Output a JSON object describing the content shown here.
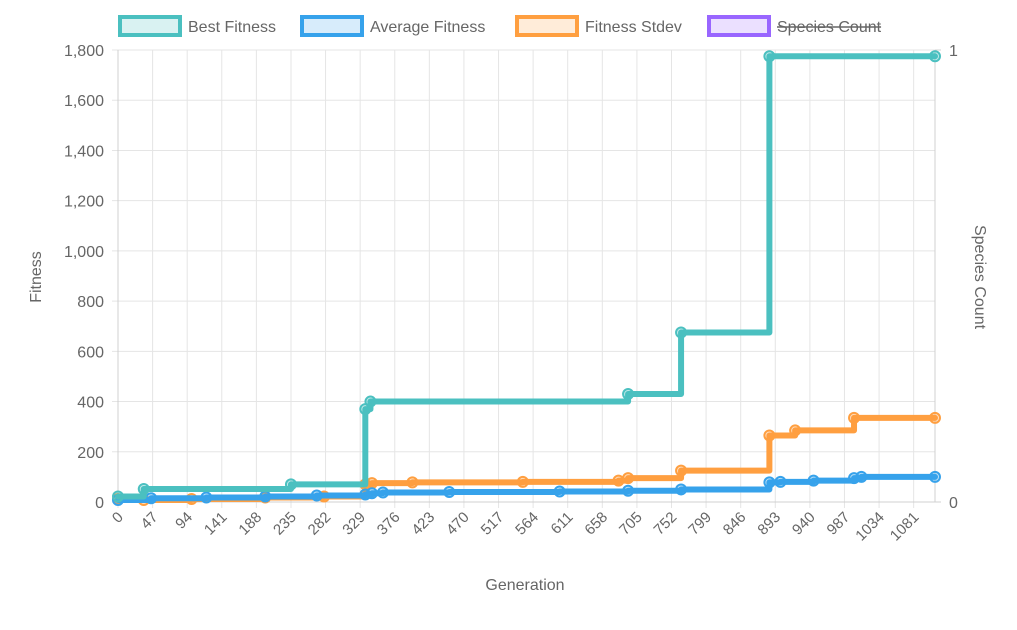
{
  "chart_data": {
    "type": "line",
    "xlabel": "Generation",
    "ylabel": "Fitness",
    "y2label": "Species Count",
    "x_range": [
      0,
      1110
    ],
    "ylim": [
      0,
      1800
    ],
    "y_ticks": [
      "0",
      "200",
      "400",
      "600",
      "800",
      "1,000",
      "1,200",
      "1,400",
      "1,600",
      "1,800"
    ],
    "y_tick_values": [
      0,
      200,
      400,
      600,
      800,
      1000,
      1200,
      1400,
      1600,
      1800
    ],
    "y2_ticks": [
      "0",
      "1"
    ],
    "y2lim": [
      0,
      1
    ],
    "x_ticks": [
      "0",
      "47",
      "94",
      "141",
      "188",
      "235",
      "282",
      "329",
      "376",
      "423",
      "470",
      "517",
      "564",
      "611",
      "658",
      "705",
      "752",
      "799",
      "846",
      "893",
      "940",
      "987",
      "1034",
      "1081"
    ],
    "x_tick_values": [
      0,
      47,
      94,
      141,
      188,
      235,
      282,
      329,
      376,
      423,
      470,
      517,
      564,
      611,
      658,
      705,
      752,
      799,
      846,
      893,
      940,
      987,
      1034,
      1081
    ],
    "grid": true,
    "legend_position": "top",
    "legend": [
      {
        "label": "Best Fitness",
        "color": "#4bc0c0",
        "fill": "#d9f2f2",
        "hidden": false
      },
      {
        "label": "Average Fitness",
        "color": "#36a2eb",
        "fill": "#d7ecfb",
        "hidden": false
      },
      {
        "label": "Fitness Stdev",
        "color": "#ff9f40",
        "fill": "#ffecd9",
        "hidden": false
      },
      {
        "label": "Species Count",
        "color": "#9966ff",
        "fill": "#ebe0ff",
        "hidden": true
      }
    ],
    "series": [
      {
        "name": "Best Fitness",
        "color": "#4bc0c0",
        "steps": [
          [
            0,
            22
          ],
          [
            35,
            52
          ],
          [
            235,
            70
          ],
          [
            336,
            370
          ],
          [
            343,
            400
          ],
          [
            693,
            430
          ],
          [
            765,
            675
          ],
          [
            885,
            1775
          ],
          [
            1110,
            1775
          ]
        ]
      },
      {
        "name": "Average Fitness",
        "color": "#36a2eb",
        "steps": [
          [
            0,
            8
          ],
          [
            45,
            15
          ],
          [
            120,
            18
          ],
          [
            200,
            22
          ],
          [
            270,
            26
          ],
          [
            336,
            30
          ],
          [
            345,
            35
          ],
          [
            360,
            38
          ],
          [
            450,
            40
          ],
          [
            600,
            42
          ],
          [
            693,
            45
          ],
          [
            765,
            50
          ],
          [
            885,
            78
          ],
          [
            900,
            80
          ],
          [
            945,
            85
          ],
          [
            1000,
            95
          ],
          [
            1010,
            100
          ],
          [
            1110,
            100
          ]
        ]
      },
      {
        "name": "Fitness Stdev",
        "color": "#ff9f40",
        "steps": [
          [
            0,
            12
          ],
          [
            35,
            8
          ],
          [
            100,
            12
          ],
          [
            200,
            18
          ],
          [
            280,
            22
          ],
          [
            336,
            70
          ],
          [
            345,
            75
          ],
          [
            400,
            78
          ],
          [
            550,
            80
          ],
          [
            680,
            85
          ],
          [
            693,
            95
          ],
          [
            765,
            125
          ],
          [
            885,
            265
          ],
          [
            920,
            285
          ],
          [
            1000,
            335
          ],
          [
            1110,
            335
          ]
        ]
      }
    ]
  }
}
